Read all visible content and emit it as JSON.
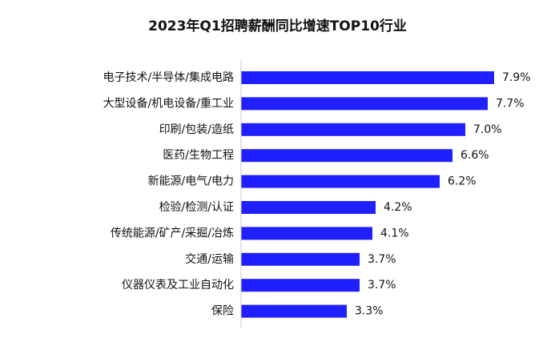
{
  "chart_data": {
    "type": "bar",
    "orientation": "horizontal",
    "title": "2023年Q1招聘薪酬同比增速TOP10行业",
    "xlabel": "",
    "ylabel": "",
    "value_suffix": "%",
    "xlim": [
      0,
      8.5
    ],
    "grid": false,
    "legend": "none",
    "bar_color": "#1f1fff",
    "categories": [
      "电子技术/半导体/集成电路",
      "大型设备/机电设备/重工业",
      "印刷/包装/造纸",
      "医药/生物工程",
      "新能源/电气/电力",
      "检验/检测/认证",
      "传统能源/矿产/采掘/冶炼",
      "交通/运输",
      "仪器仪表及工业自动化",
      "保险"
    ],
    "values": [
      7.9,
      7.7,
      7.0,
      6.6,
      6.2,
      4.2,
      4.1,
      3.7,
      3.7,
      3.3
    ],
    "value_labels": [
      "7.9%",
      "7.7%",
      "7.0%",
      "6.6%",
      "6.2%",
      "4.2%",
      "4.1%",
      "3.7%",
      "3.7%",
      "3.3%"
    ]
  }
}
